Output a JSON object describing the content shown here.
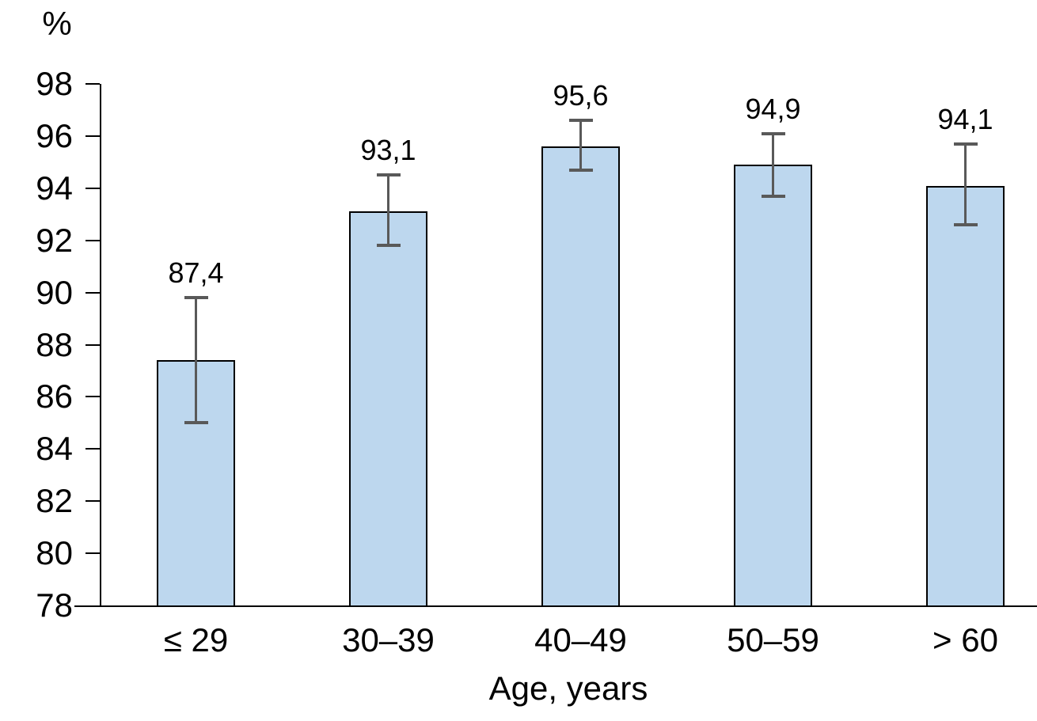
{
  "chart_data": {
    "type": "bar",
    "title": "",
    "y_axis_label": "%",
    "xlabel": "Age, years",
    "ylabel": "%",
    "categories": [
      "≤ 29",
      "30–39",
      "40–49",
      "50–59",
      "> 60"
    ],
    "values": [
      87.4,
      93.1,
      95.6,
      94.9,
      94.1
    ],
    "value_labels": [
      "87,4",
      "93,1",
      "95,6",
      "94,9",
      "94,1"
    ],
    "error_low": [
      85.0,
      91.8,
      94.7,
      93.7,
      92.6
    ],
    "error_high": [
      89.8,
      94.5,
      96.6,
      96.1,
      95.7
    ],
    "ylim": [
      78,
      98
    ],
    "y_tick_step": 2,
    "y_tick_labels": [
      "78",
      "80",
      "82",
      "84",
      "86",
      "88",
      "90",
      "92",
      "94",
      "96",
      "98"
    ],
    "grid": false,
    "legend": false,
    "colors": {
      "bar_fill": "#BDD7EE",
      "bar_border": "#000000",
      "error_bar": "#595959",
      "axis": "#000000",
      "text": "#000000"
    }
  }
}
